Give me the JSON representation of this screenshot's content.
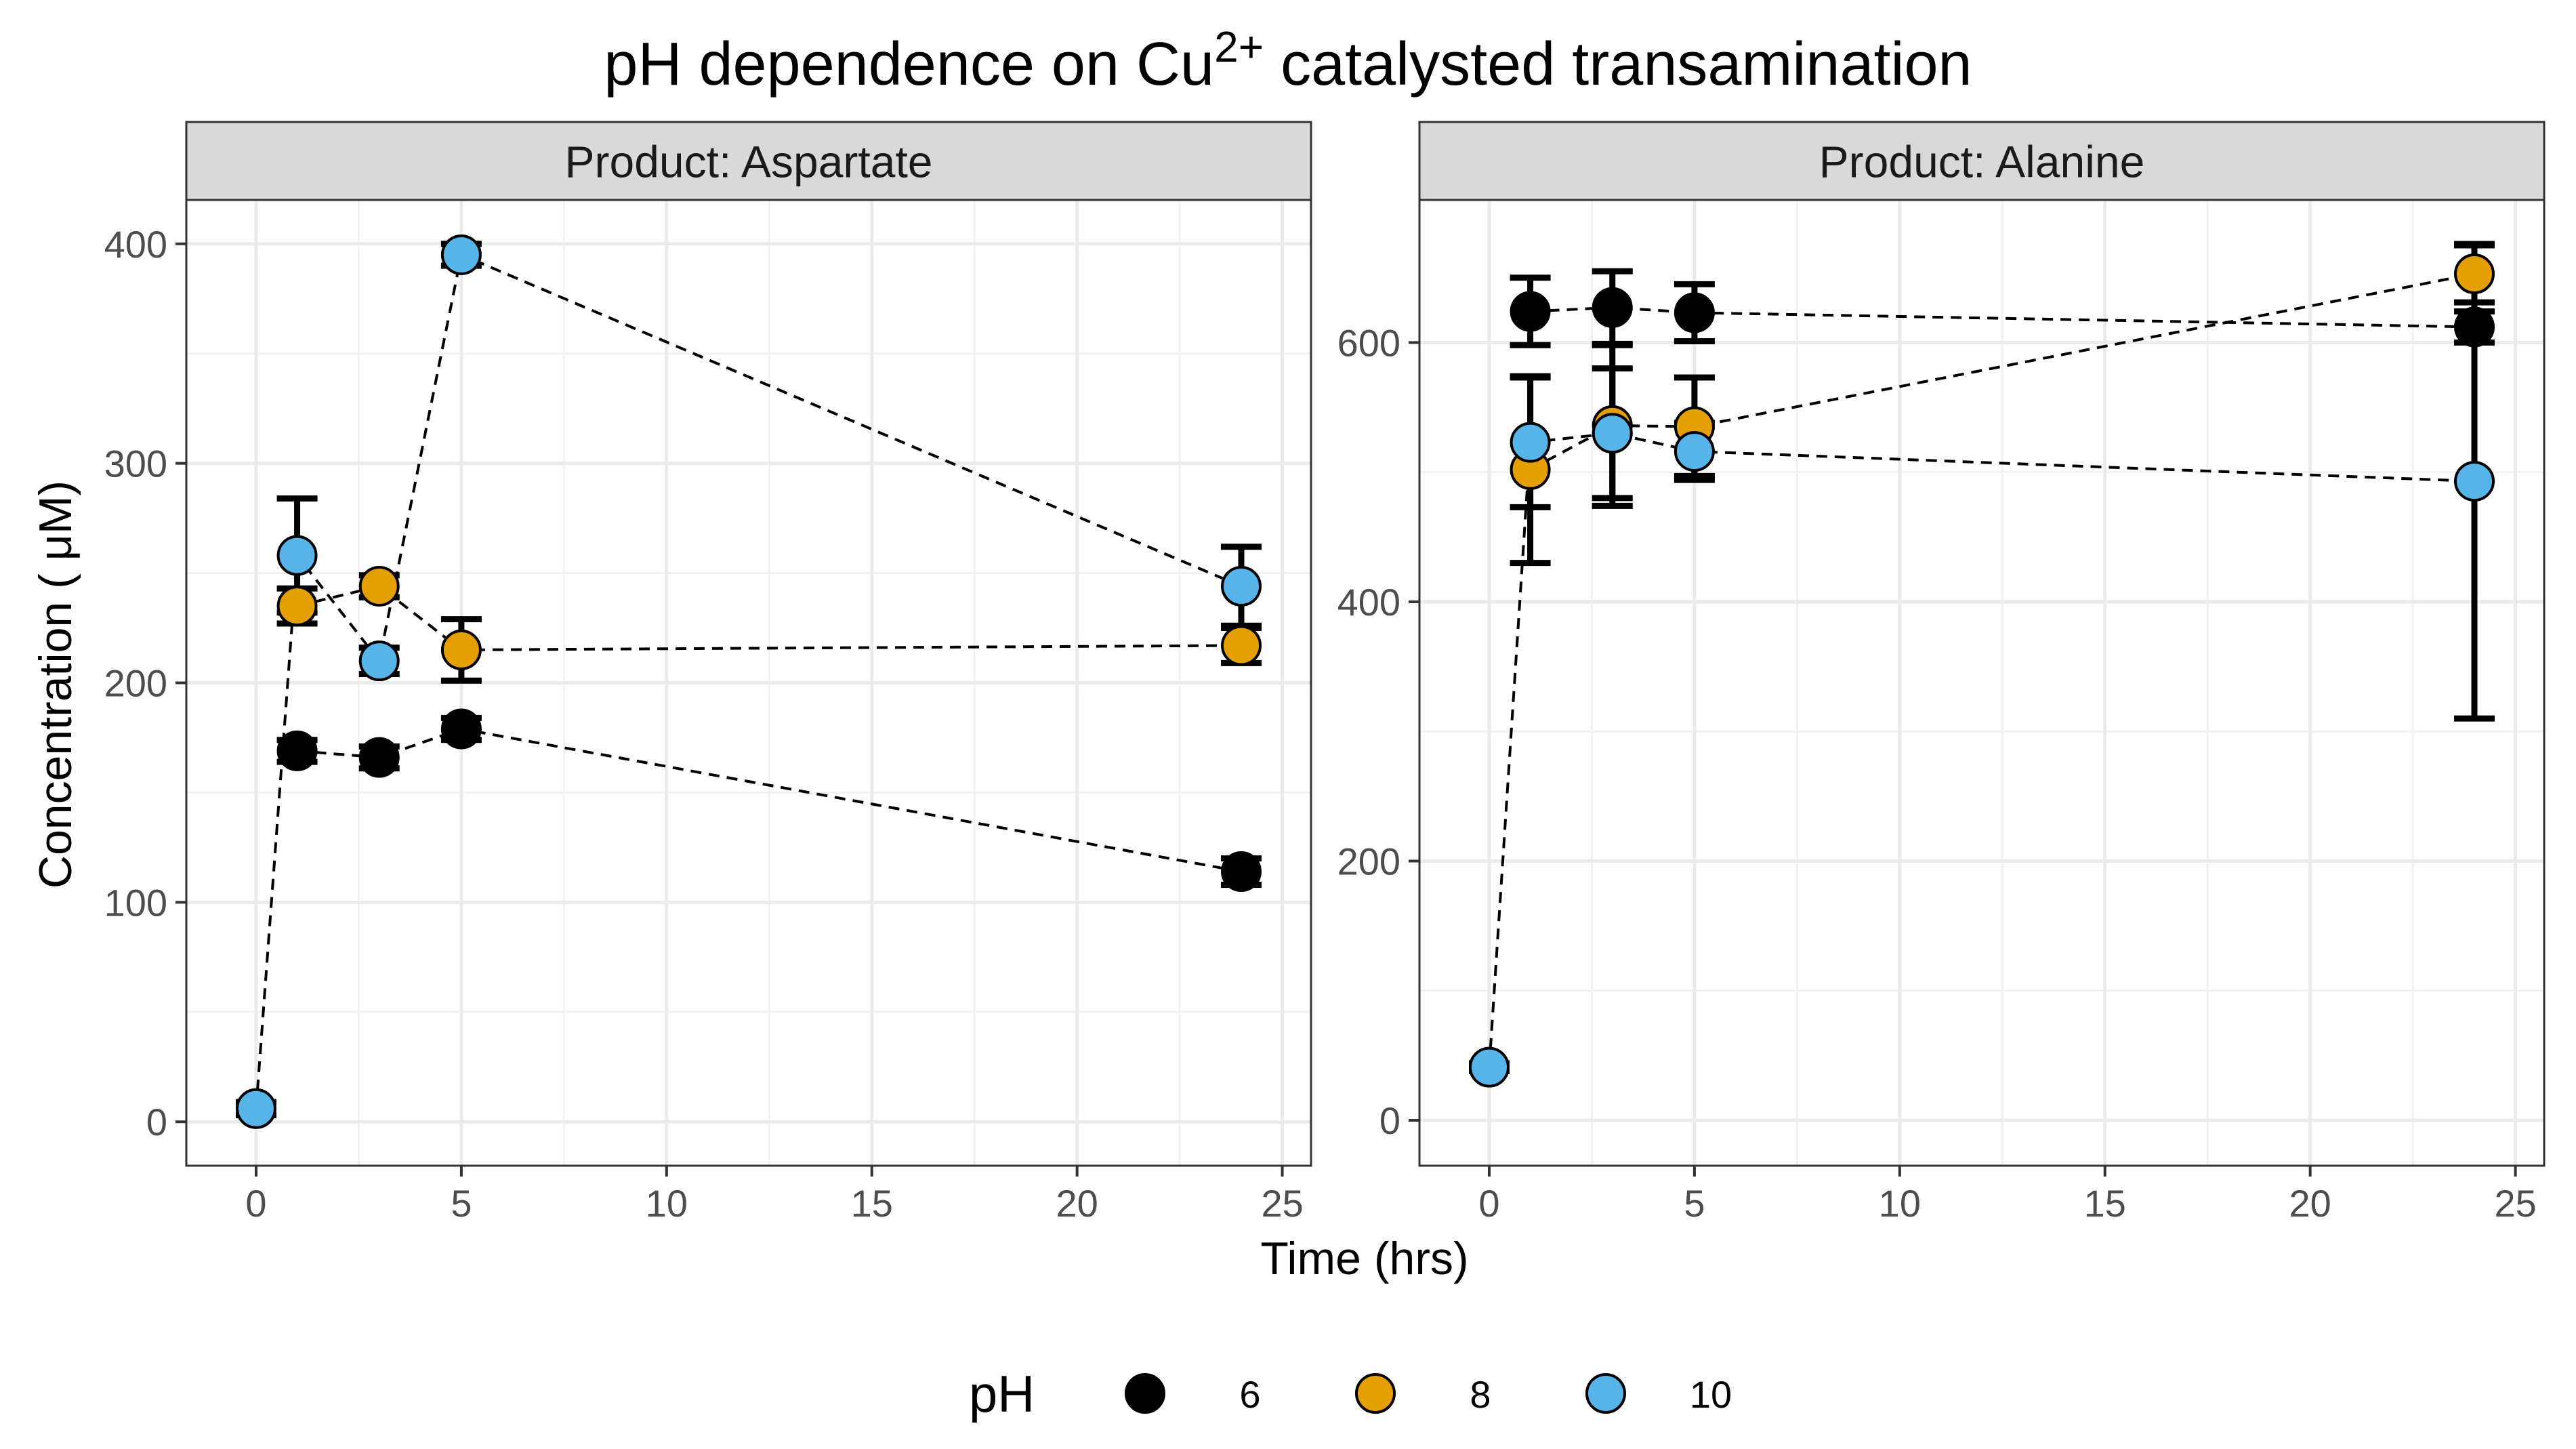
{
  "chart_data": {
    "type": "line",
    "title_prefix": "pH dependence on Cu",
    "title_superscript": "2+",
    "title_suffix": " catalysted transamination",
    "xlabel": "Time (hrs)",
    "ylabel": "Concentration ( μM)",
    "xlim": [
      -1.7,
      25.7
    ],
    "x_ticks": [
      0,
      5,
      10,
      15,
      20,
      25
    ],
    "legend": {
      "title": "pH",
      "position": "bottom",
      "entries": [
        {
          "label": "6",
          "color": "#000000"
        },
        {
          "label": "8",
          "color": "#E69F00"
        },
        {
          "label": "10",
          "color": "#56B4E9"
        }
      ]
    },
    "panels": [
      {
        "strip": "Product: Aspartate",
        "ylim": [
          -20,
          420
        ],
        "y_ticks": [
          0,
          100,
          200,
          300,
          400
        ],
        "series": [
          {
            "name": "6",
            "color": "#000000",
            "x": [
              1,
              3,
              5,
              24
            ],
            "y": [
              169,
              166,
              179,
              114
            ],
            "err": [
              5,
              5,
              5,
              6
            ]
          },
          {
            "name": "8",
            "color": "#E69F00",
            "x": [
              1,
              3,
              5,
              24
            ],
            "y": [
              235,
              244,
              215,
              217
            ],
            "err": [
              8,
              5,
              14,
              8
            ]
          },
          {
            "name": "10",
            "color": "#56B4E9",
            "x": [
              0,
              1,
              3,
              5,
              24
            ],
            "y": [
              6,
              258,
              210,
              395,
              244
            ],
            "err": [
              3,
              26,
              6,
              5,
              18
            ]
          }
        ]
      },
      {
        "strip": "Product: Alanine",
        "ylim": [
          -35,
          710
        ],
        "y_ticks": [
          0,
          200,
          400,
          600
        ],
        "series": [
          {
            "name": "6",
            "color": "#000000",
            "x": [
              1,
              3,
              5,
              24
            ],
            "y": [
              624,
              627,
              623,
              612
            ],
            "err": [
              26,
              28,
              22,
              12
            ]
          },
          {
            "name": "8",
            "color": "#E69F00",
            "x": [
              1,
              3,
              5,
              24
            ],
            "y": [
              502,
              536,
              535,
              653
            ],
            "err": [
              72,
              62,
              38,
              22
            ]
          },
          {
            "name": "10",
            "color": "#56B4E9",
            "x": [
              0,
              1,
              3,
              5,
              24
            ],
            "y": [
              41,
              523,
              530,
              516,
              493
            ],
            "err": [
              3,
              50,
              50,
              22,
              183
            ]
          }
        ]
      }
    ]
  }
}
